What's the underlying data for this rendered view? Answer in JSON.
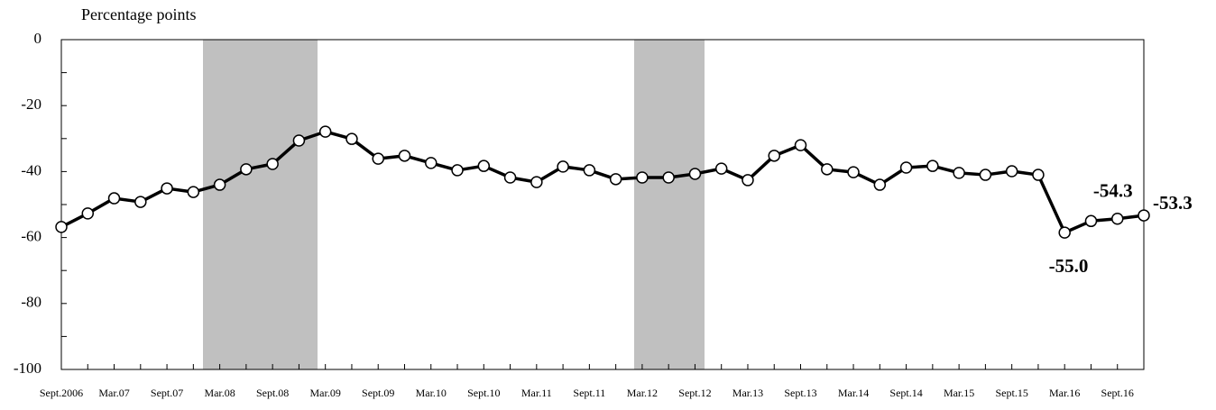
{
  "chart_data": {
    "type": "line",
    "y_label": "Percentage points",
    "categories": [
      "Sept.2006",
      null,
      "Mar.07",
      null,
      "Sept.07",
      null,
      "Mar.08",
      null,
      "Sept.08",
      null,
      "Mar.09",
      null,
      "Sept.09",
      null,
      "Mar.10",
      null,
      "Sept.10",
      null,
      "Mar.11",
      null,
      "Sept.11",
      null,
      "Mar.12",
      null,
      "Sept.12",
      null,
      "Mar.13",
      null,
      "Sept.13",
      null,
      "Mar.14",
      null,
      "Sept.14",
      null,
      "Mar.15",
      null,
      "Sept.15",
      null,
      "Mar.16",
      null,
      "Sept.16",
      null
    ],
    "series": [
      {
        "color": "#000000",
        "values": [
          -56.8,
          -52.7,
          -48.1,
          -49.2,
          -45.1,
          -46.2,
          -44.0,
          -39.3,
          -37.7,
          -30.6,
          -27.9,
          -30.1,
          -36.1,
          -35.2,
          -37.4,
          -39.6,
          -38.3,
          -41.8,
          -43.2,
          -38.5,
          -39.6,
          -42.3,
          -41.8,
          -41.8,
          -40.7,
          -39.1,
          -42.6,
          -35.2,
          -32.0,
          -39.3,
          -40.2,
          -44.0,
          -38.8,
          -38.3,
          -40.4,
          -41.0,
          -39.9,
          -41.0,
          -58.5,
          -55.0,
          -54.3,
          -53.3
        ],
        "value_labels": [
          null,
          null,
          null,
          null,
          null,
          null,
          null,
          null,
          null,
          null,
          null,
          null,
          null,
          null,
          null,
          null,
          null,
          null,
          null,
          null,
          null,
          null,
          null,
          null,
          null,
          null,
          null,
          null,
          null,
          null,
          null,
          null,
          null,
          null,
          null,
          null,
          null,
          null,
          null,
          "-55.0",
          "-54.3",
          "-53.3"
        ]
      }
    ],
    "ylim": [
      -100,
      0
    ],
    "yticks": [
      0,
      -20,
      -40,
      -60,
      -80,
      -100
    ],
    "yticks_minor": [
      -10,
      -30,
      -50,
      -70,
      -90
    ],
    "grid": false
  }
}
